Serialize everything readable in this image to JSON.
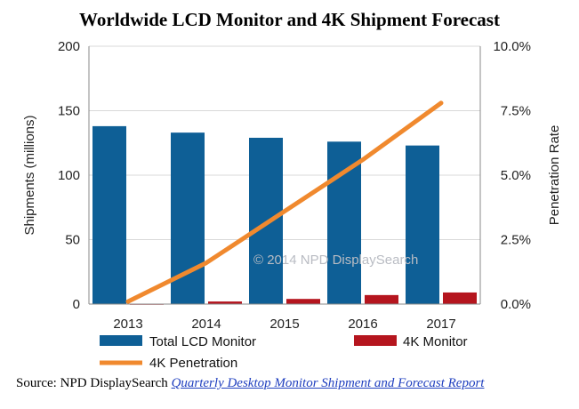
{
  "title": "Worldwide LCD Monitor and 4K Shipment Forecast",
  "watermark": "© 2014 NPD DisplaySearch",
  "source": {
    "prefix": "Source: NPD DisplaySearch ",
    "report": "Quarterly Desktop Monitor Shipment and Forecast Report"
  },
  "colors": {
    "total_bar": "#0e5f96",
    "fourk_bar": "#b5151e",
    "penetration_line": "#f0892e",
    "gridline": "#d9d9d9",
    "axis": "#888888"
  },
  "chart_data": {
    "type": "bar",
    "title": "Worldwide LCD Monitor and 4K Shipment Forecast",
    "categories": [
      "2013",
      "2014",
      "2015",
      "2016",
      "2017"
    ],
    "ylabel": "Shipments  (millions)",
    "ylabel_right": "Penetration Rate",
    "ylim": [
      0,
      200
    ],
    "ylim_right": [
      0,
      10
    ],
    "yticks": [
      "0",
      "50",
      "100",
      "150",
      "200"
    ],
    "yticks_right": [
      "0.0%",
      "2.5%",
      "5.0%",
      "7.5%",
      "10.0%"
    ],
    "grid": true,
    "legend_placement": "bottom",
    "series": [
      {
        "name": "Total LCD Monitor",
        "type": "bar",
        "axis": "left",
        "values": [
          138,
          133,
          129,
          126,
          123
        ]
      },
      {
        "name": "4K Monitor",
        "type": "bar",
        "axis": "left",
        "values": [
          0.2,
          2,
          4,
          7,
          9
        ]
      },
      {
        "name": "4K Penetration",
        "type": "line",
        "axis": "right",
        "unit": "%",
        "values": [
          0.1,
          1.6,
          3.6,
          5.6,
          7.8
        ]
      }
    ]
  }
}
